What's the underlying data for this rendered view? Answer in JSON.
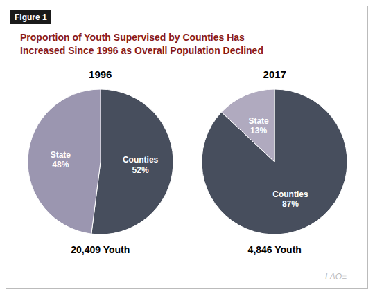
{
  "title": "Proportion of Youth Supervised by Counties Has\nIncreased Since 1996 as Overall Population Declined",
  "annotations": [
    "Figure 1",
    "LAO≡"
  ],
  "chart_data": [
    {
      "type": "pie",
      "title": "1996",
      "subtitle": "20,409 Youth",
      "categories": [
        "Counties",
        "State"
      ],
      "values": [
        52,
        48
      ],
      "value_labels": [
        "52%",
        "48%"
      ],
      "colors": [
        "#474E5D",
        "#9B96B0"
      ],
      "data_labels": true
    },
    {
      "type": "pie",
      "title": "2017",
      "subtitle": "4,846 Youth",
      "categories": [
        "Counties",
        "State"
      ],
      "values": [
        87,
        13
      ],
      "value_labels": [
        "87%",
        "13%"
      ],
      "colors": [
        "#474E5D",
        "#B0AABF"
      ],
      "data_labels": true
    }
  ]
}
